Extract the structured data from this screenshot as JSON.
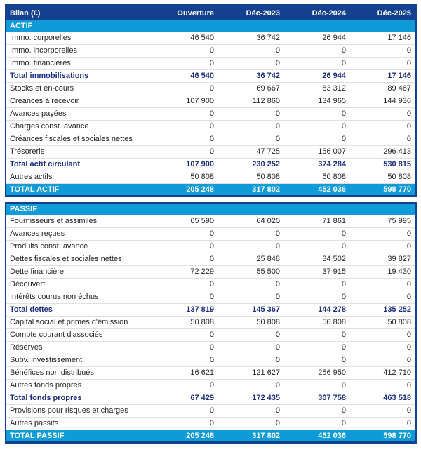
{
  "title": "Bilan (£)",
  "colors": {
    "header_bg": "#14418f",
    "section_bg": "#0f9bd8",
    "total_text": "#1b2d80",
    "border": "#14418f",
    "separator": "#e0e0e0",
    "text": "#252525"
  },
  "table": {
    "columns": [
      "Bilan (£)",
      "Ouverture",
      "Déc-2023",
      "Déc-2024",
      "Déc-2025"
    ],
    "sections": [
      {
        "name": "ACTIF",
        "rows": [
          {
            "label": "Immo. corporelles",
            "type": "data",
            "values": [
              "46 540",
              "36 742",
              "26 944",
              "17 146"
            ]
          },
          {
            "label": "Immo. incorporelles",
            "type": "data",
            "values": [
              "0",
              "0",
              "0",
              "0"
            ]
          },
          {
            "label": "Immo. financières",
            "type": "data",
            "values": [
              "0",
              "0",
              "0",
              "0"
            ]
          },
          {
            "label": "Total immobilisations",
            "type": "total",
            "values": [
              "46 540",
              "36 742",
              "26 944",
              "17 146"
            ]
          },
          {
            "label": "Stocks et en-cours",
            "type": "data",
            "values": [
              "0",
              "69 667",
              "83 312",
              "89 467"
            ]
          },
          {
            "label": "Créances à recevoir",
            "type": "data",
            "values": [
              "107 900",
              "112 860",
              "134 965",
              "144 936"
            ]
          },
          {
            "label": "Avances payées",
            "type": "data",
            "values": [
              "0",
              "0",
              "0",
              "0"
            ]
          },
          {
            "label": "Charges const. avance",
            "type": "data",
            "values": [
              "0",
              "0",
              "0",
              "0"
            ]
          },
          {
            "label": "Créances fiscales et sociales nettes",
            "type": "data",
            "values": [
              "0",
              "0",
              "0",
              "0"
            ]
          },
          {
            "label": "Trésorerie",
            "type": "data",
            "values": [
              "0",
              "47 725",
              "156 007",
              "296 413"
            ]
          },
          {
            "label": "Total actif circulant",
            "type": "total",
            "values": [
              "107 900",
              "230 252",
              "374 284",
              "530 815"
            ]
          },
          {
            "label": "Autres actifs",
            "type": "data",
            "values": [
              "50 808",
              "50 808",
              "50 808",
              "50 808"
            ]
          },
          {
            "label": "TOTAL ACTIF",
            "type": "grandtotal",
            "values": [
              "205 248",
              "317 802",
              "452 036",
              "598 770"
            ]
          }
        ]
      },
      {
        "name": "PASSIF",
        "rows": [
          {
            "label": "Fournisseurs et assimilés",
            "type": "data",
            "values": [
              "65 590",
              "64 020",
              "71 861",
              "75 995"
            ]
          },
          {
            "label": "Avances reçues",
            "type": "data",
            "values": [
              "0",
              "0",
              "0",
              "0"
            ]
          },
          {
            "label": "Produits const. avance",
            "type": "data",
            "values": [
              "0",
              "0",
              "0",
              "0"
            ]
          },
          {
            "label": "Dettes fiscales et sociales nettes",
            "type": "data",
            "values": [
              "0",
              "25 848",
              "34 502",
              "39 827"
            ]
          },
          {
            "label": "Dette financière",
            "type": "data",
            "values": [
              "72 229",
              "55 500",
              "37 915",
              "19 430"
            ]
          },
          {
            "label": "Découvert",
            "type": "data",
            "values": [
              "0",
              "0",
              "0",
              "0"
            ]
          },
          {
            "label": "Intérêts courus non échus",
            "type": "data",
            "values": [
              "0",
              "0",
              "0",
              "0"
            ]
          },
          {
            "label": "Total dettes",
            "type": "total",
            "values": [
              "137 819",
              "145 367",
              "144 278",
              "135 252"
            ]
          },
          {
            "label": "Capital social et primes d'émission",
            "type": "data",
            "values": [
              "50 808",
              "50 808",
              "50 808",
              "50 808"
            ]
          },
          {
            "label": "Compte courant d'associés",
            "type": "data",
            "values": [
              "0",
              "0",
              "0",
              "0"
            ]
          },
          {
            "label": "Réserves",
            "type": "data",
            "values": [
              "0",
              "0",
              "0",
              "0"
            ]
          },
          {
            "label": "Subv. investissement",
            "type": "data",
            "values": [
              "0",
              "0",
              "0",
              "0"
            ]
          },
          {
            "label": "Bénéfices non distribués",
            "type": "data",
            "values": [
              "16 621",
              "121 627",
              "256 950",
              "412 710"
            ]
          },
          {
            "label": "Autres fonds propres",
            "type": "data",
            "values": [
              "0",
              "0",
              "0",
              "0"
            ]
          },
          {
            "label": "Total fonds propres",
            "type": "total",
            "values": [
              "67 429",
              "172 435",
              "307 758",
              "463 518"
            ]
          },
          {
            "label": "Provisions pour risques et charges",
            "type": "data",
            "values": [
              "0",
              "0",
              "0",
              "0"
            ]
          },
          {
            "label": "Autres passifs",
            "type": "data",
            "values": [
              "0",
              "0",
              "0",
              "0"
            ]
          },
          {
            "label": "TOTAL PASSIF",
            "type": "grandtotal",
            "values": [
              "205 248",
              "317 802",
              "452 036",
              "598 770"
            ]
          }
        ]
      }
    ]
  }
}
